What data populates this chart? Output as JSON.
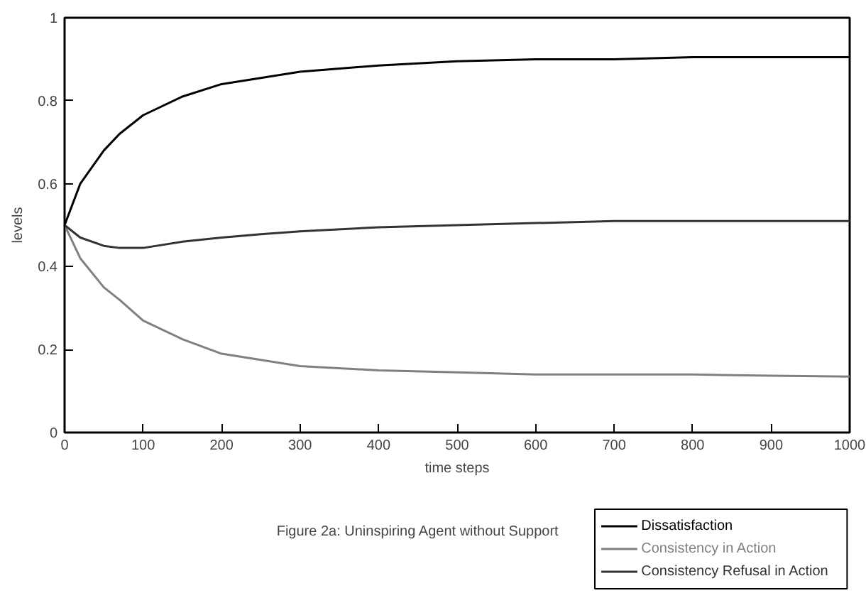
{
  "chart_data": {
    "type": "line",
    "xlabel": "time steps",
    "ylabel": "levels",
    "annotations": [
      "Figure 2a: Uninspiring Agent without Support"
    ],
    "xlim": [
      0,
      1000
    ],
    "xticks": [
      0,
      100,
      200,
      300,
      400,
      500,
      600,
      700,
      800,
      900,
      1000
    ],
    "ylim": [
      0,
      1
    ],
    "yticks": [
      0,
      0.2,
      0.4,
      0.6,
      0.8,
      1
    ],
    "grid": false,
    "legend": "bottom right",
    "marker": "none",
    "line_style": "solid",
    "x": [
      0,
      20,
      50,
      70,
      100,
      150,
      200,
      250,
      300,
      400,
      500,
      600,
      700,
      800,
      900,
      1000
    ],
    "series": [
      {
        "name": "Dissatisfaction",
        "color": "#000000",
        "values": [
          0.5,
          0.6,
          0.68,
          0.72,
          0.765,
          0.81,
          0.84,
          0.855,
          0.87,
          0.885,
          0.895,
          0.9,
          0.9,
          0.905,
          0.905,
          0.905
        ]
      },
      {
        "name": "Consistency in Action",
        "color": "#808080",
        "values": [
          0.5,
          0.42,
          0.35,
          0.32,
          0.27,
          0.225,
          0.19,
          0.175,
          0.16,
          0.15,
          0.145,
          0.14,
          0.14,
          0.14,
          0.137,
          0.135
        ]
      },
      {
        "name": "Consistency Refusal in Action",
        "color": "#333333",
        "values": [
          0.5,
          0.47,
          0.45,
          0.445,
          0.445,
          0.46,
          0.47,
          0.478,
          0.485,
          0.495,
          0.5,
          0.505,
          0.51,
          0.51,
          0.51,
          0.51
        ]
      }
    ]
  }
}
